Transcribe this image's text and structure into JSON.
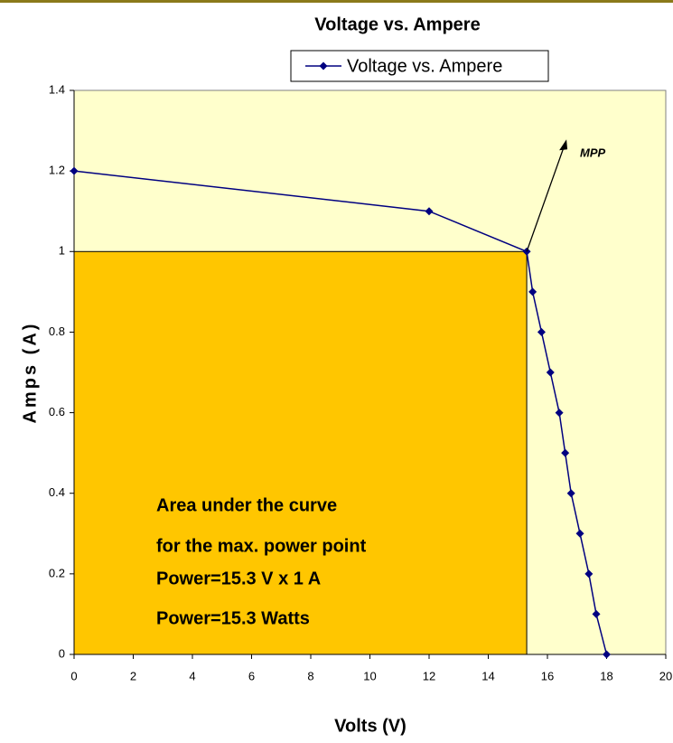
{
  "chart_data": {
    "type": "line",
    "title": "Voltage vs. Ampere",
    "xlabel": "Volts (V)",
    "ylabel": "Amps (A)",
    "x": [
      0,
      12,
      15.3,
      15.5,
      15.8,
      16.1,
      16.4,
      16.6,
      16.8,
      17.1,
      17.4,
      17.65,
      18
    ],
    "series": [
      {
        "name": "Voltage vs. Ampere",
        "color": "#000080",
        "values": [
          1.2,
          1.1,
          1,
          0.9,
          0.8,
          0.7,
          0.6,
          0.5,
          0.4,
          0.3,
          0.2,
          0.1,
          0
        ]
      }
    ],
    "xlim": [
      0,
      20
    ],
    "ylim": [
      0,
      1.4
    ],
    "xticks": [
      0,
      2,
      4,
      6,
      8,
      10,
      12,
      14,
      16,
      18,
      20
    ],
    "yticks": [
      0,
      0.2,
      0.4,
      0.6,
      0.8,
      1,
      1.2,
      1.4
    ],
    "plot_background": "#ffffcc",
    "mpp": {
      "label": "MPP",
      "x": 15.3,
      "y": 1,
      "area_color": "#ffc600"
    },
    "area_text": [
      "Area under the curve",
      "for the max. power point",
      "Power=15.3 V x 1 A",
      "Power=15.3 Watts"
    ]
  }
}
